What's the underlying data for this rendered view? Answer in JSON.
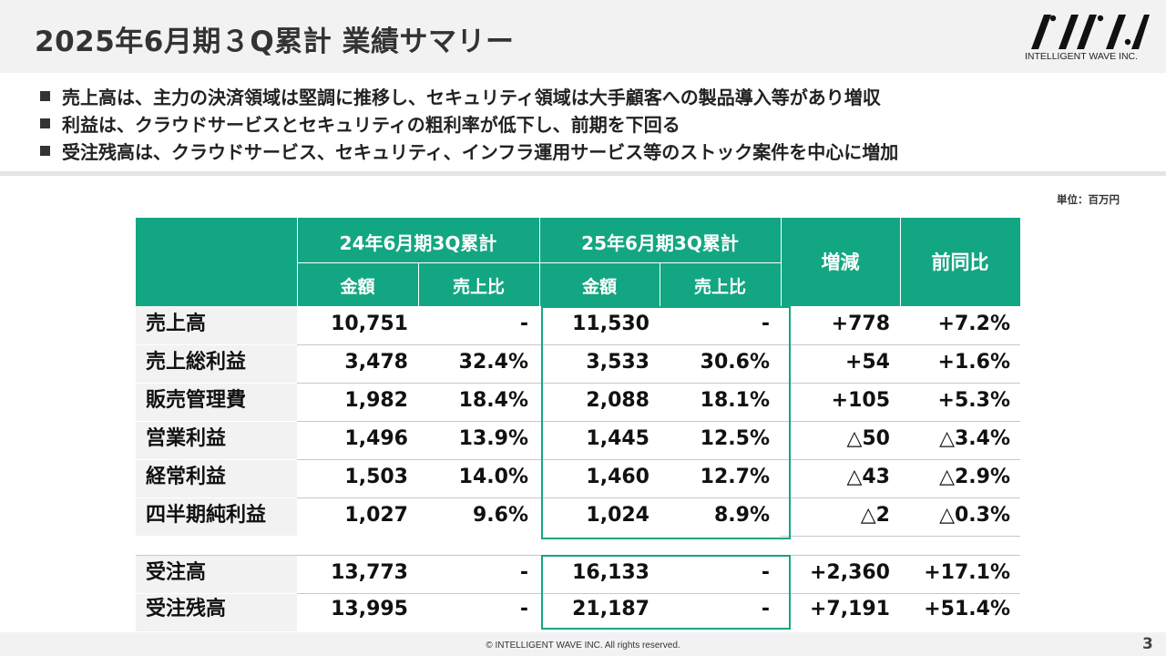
{
  "title": "2025年6月期３Q累計 業績サマリー",
  "logo": {
    "text": "INTELLIGENT WAVE INC."
  },
  "bullets": [
    "売上高は、主力の決済領域は堅調に推移し、セキュリティ領域は大手顧客への製品導入等があり増収",
    "利益は、クラウドサービスとセキュリティの粗利率が低下し、前期を下回る",
    "受注残高は、クラウドサービス、セキュリティ、インフラ運用サービス等のストック案件を中心に増加"
  ],
  "unit": "単位：百万円",
  "table": {
    "headers": {
      "period_prev": "24年6月期3Q累計",
      "period_curr": "25年6月期3Q累計",
      "amount": "金額",
      "ratio": "売上比",
      "change": "増減",
      "yoy": "前同比"
    },
    "rows": [
      {
        "label": "売上高",
        "prev_amount": "10,751",
        "prev_ratio": "-",
        "curr_amount": "11,530",
        "curr_ratio": "-",
        "change": "+778",
        "yoy": "+7.2%"
      },
      {
        "label": "売上総利益",
        "prev_amount": "3,478",
        "prev_ratio": "32.4%",
        "curr_amount": "3,533",
        "curr_ratio": "30.6%",
        "change": "+54",
        "yoy": "+1.6%"
      },
      {
        "label": "販売管理費",
        "prev_amount": "1,982",
        "prev_ratio": "18.4%",
        "curr_amount": "2,088",
        "curr_ratio": "18.1%",
        "change": "+105",
        "yoy": "+5.3%"
      },
      {
        "label": "営業利益",
        "prev_amount": "1,496",
        "prev_ratio": "13.9%",
        "curr_amount": "1,445",
        "curr_ratio": "12.5%",
        "change": "△50",
        "yoy": "△3.4%"
      },
      {
        "label": "経常利益",
        "prev_amount": "1,503",
        "prev_ratio": "14.0%",
        "curr_amount": "1,460",
        "curr_ratio": "12.7%",
        "change": "△43",
        "yoy": "△2.9%"
      },
      {
        "label": "四半期純利益",
        "prev_amount": "1,027",
        "prev_ratio": "9.6%",
        "curr_amount": "1,024",
        "curr_ratio": "8.9%",
        "change": "△2",
        "yoy": "△0.3%"
      }
    ],
    "order_rows": [
      {
        "label": "受注高",
        "prev_amount": "13,773",
        "prev_ratio": "-",
        "curr_amount": "16,133",
        "curr_ratio": "-",
        "change": "+2,360",
        "yoy": "+17.1%"
      },
      {
        "label": "受注残高",
        "prev_amount": "13,995",
        "prev_ratio": "-",
        "curr_amount": "21,187",
        "curr_ratio": "-",
        "change": "+7,191",
        "yoy": "+51.4%"
      }
    ]
  },
  "footer": {
    "copyright": "© INTELLIGENT WAVE INC. All rights reserved.",
    "page": "3"
  },
  "colors": {
    "accent": "#13a682",
    "label_bg": "#f2f2f2",
    "header_bg": "#f2f2f2"
  }
}
